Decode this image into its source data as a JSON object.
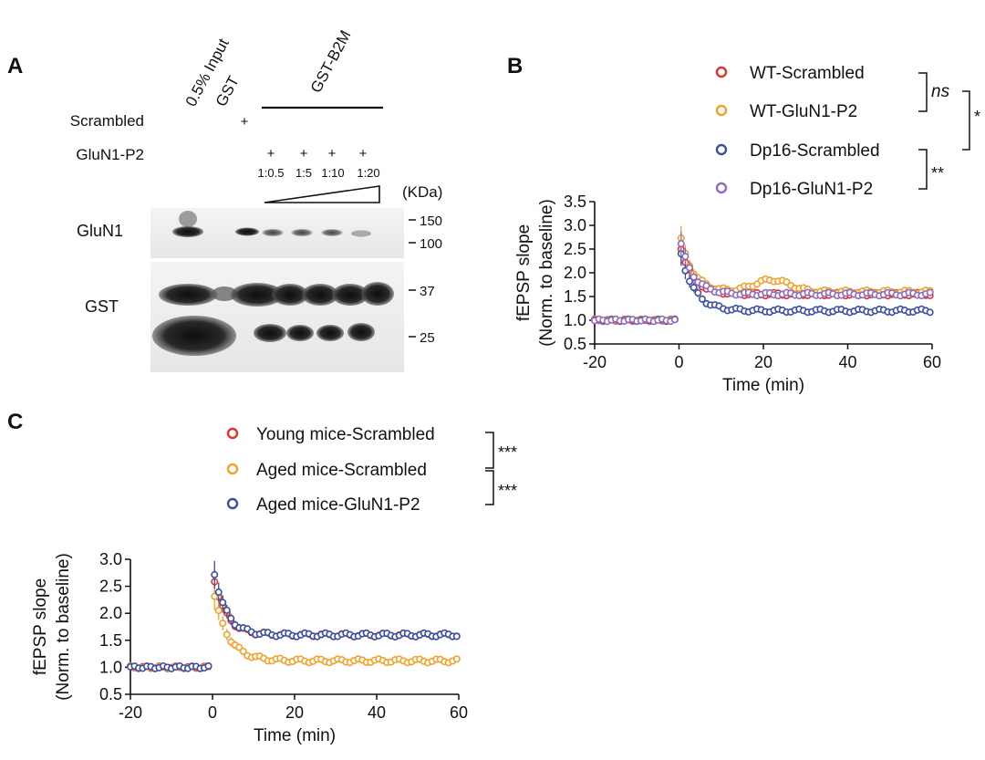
{
  "panel_labels": {
    "a": "A",
    "b": "B",
    "c": "C"
  },
  "panel_a": {
    "columns": {
      "input": "0.5% Input",
      "gst": "GST",
      "gst_b2m": "GST-B2M"
    },
    "row_labels": {
      "scrambled": "Scrambled",
      "gluN1_p2": "GluN1-P2"
    },
    "plus_sign": "+",
    "ratios": [
      "1:0.5",
      "1:5",
      "1:10",
      "1:20"
    ],
    "kda_label": "(KDa)",
    "blots": [
      {
        "name": "GluN1",
        "markers": [
          "150",
          "100"
        ]
      },
      {
        "name": "GST",
        "markers": [
          "37",
          "25"
        ]
      }
    ]
  },
  "chart_data": [
    {
      "id": "B",
      "type": "scatter",
      "xlabel": "Time (min)",
      "ylabel": "fEPSP slope",
      "ylabel2": "(Norm. to baseline)",
      "xlim": [
        -20,
        60
      ],
      "ylim": [
        0.5,
        3.5
      ],
      "x_ticks": [
        "-20",
        "0",
        "20",
        "40",
        "60"
      ],
      "y_ticks": [
        "0.5",
        "1.0",
        "1.5",
        "2.0",
        "2.5",
        "3.0",
        "3.5"
      ],
      "series": [
        {
          "name": "WT-Scrambled",
          "color": "#e8302a",
          "baseline": 1.0,
          "peak": 2.7,
          "plateau": 1.55,
          "tau": 3.0,
          "bump": 0
        },
        {
          "name": "WT-GluN1-P2",
          "color": "#f2a12a",
          "baseline": 1.0,
          "peak": 2.9,
          "plateau": 1.6,
          "tau": 3.0,
          "bump": 0.25
        },
        {
          "name": "Dp16-Scrambled",
          "color": "#3a4fa3",
          "baseline": 1.0,
          "peak": 2.6,
          "plateau": 1.2,
          "tau": 3.2,
          "bump": 0
        },
        {
          "name": "Dp16-GluN1-P2",
          "color": "#8e6bbf",
          "baseline": 1.0,
          "peak": 2.8,
          "plateau": 1.55,
          "tau": 3.0,
          "bump": 0
        }
      ],
      "brackets": [
        {
          "label": "ns",
          "italic": true
        },
        {
          "label": "*"
        },
        {
          "label": "**"
        }
      ]
    },
    {
      "id": "C",
      "type": "scatter",
      "xlabel": "Time (min)",
      "ylabel": "fEPSP slope",
      "ylabel2": "(Norm. to baseline)",
      "xlim": [
        -20,
        60
      ],
      "ylim": [
        0.5,
        3.0
      ],
      "x_ticks": [
        "-20",
        "0",
        "20",
        "40",
        "60"
      ],
      "y_ticks": [
        "0.5",
        "1.0",
        "1.5",
        "2.0",
        "2.5",
        "3.0"
      ],
      "series": [
        {
          "name": "Young mice-Scrambled",
          "color": "#e8302a",
          "baseline": 1.0,
          "peak": 2.8,
          "plateau": 1.6,
          "tau": 3.0,
          "bump": 0
        },
        {
          "name": "Aged mice-Scrambled",
          "color": "#f2a12a",
          "baseline": 1.0,
          "peak": 2.5,
          "plateau": 1.12,
          "tau": 3.5,
          "bump": 0
        },
        {
          "name": "Aged mice-GluN1-P2",
          "color": "#3a4fa3",
          "baseline": 1.0,
          "peak": 2.95,
          "plateau": 1.6,
          "tau": 3.0,
          "bump": 0
        }
      ],
      "brackets": [
        {
          "label": "***"
        },
        {
          "label": "***"
        }
      ]
    }
  ]
}
